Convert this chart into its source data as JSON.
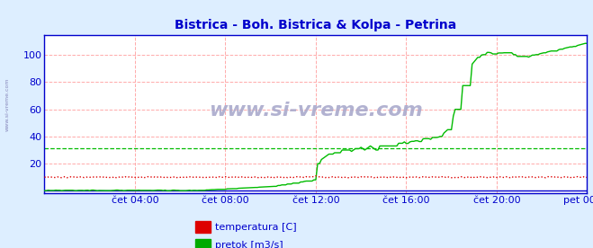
{
  "title": "Bistrica - Boh. Bistrica & Kolpa - Petrina",
  "title_color": "#0000cc",
  "bg_color": "#ddeeff",
  "plot_bg_color": "#ffffff",
  "xlabel": "",
  "ylabel": "",
  "xlim": [
    0,
    288
  ],
  "ylim": [
    -2,
    115
  ],
  "yticks": [
    20,
    40,
    60,
    80,
    100
  ],
  "xtick_labels": [
    "čet 04:00",
    "čet 08:00",
    "čet 12:00",
    "čet 16:00",
    "čet 20:00",
    "pet 00:00"
  ],
  "xtick_positions": [
    48,
    96,
    144,
    192,
    240,
    288
  ],
  "grid_color": "#ffaaaa",
  "axis_color": "#0000cc",
  "watermark": "www.si-vreme.com",
  "watermark_color": "#aaaacc",
  "side_label": "www.si-vreme.com",
  "legend_items": [
    "temperatura [C]",
    "pretok [m3/s]"
  ],
  "legend_colors": [
    "#dd0000",
    "#00aa00"
  ],
  "temp_color": "#dd0000",
  "flow_color": "#00bb00",
  "height_color": "#0000cc",
  "flow_avg_line": 31,
  "flow_avg_color": "#00bb00",
  "tick_color": "#0000cc",
  "tick_fontsize": 8
}
